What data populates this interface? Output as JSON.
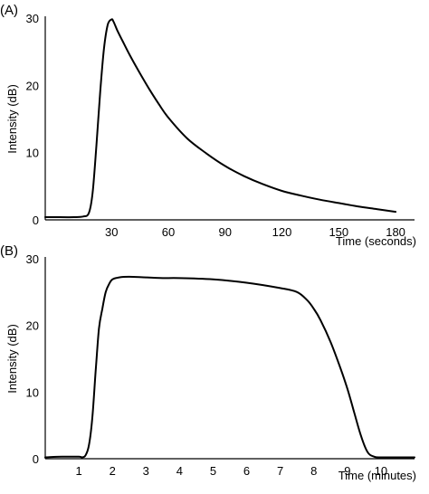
{
  "chart_data": [
    {
      "type": "line",
      "panel_label": "(A)",
      "xlabel": "Time (seconds)",
      "ylabel": "Intensity (dB)",
      "xlim": [
        -5,
        190
      ],
      "ylim": [
        0,
        30
      ],
      "xticks": [
        30,
        60,
        90,
        120,
        150,
        180
      ],
      "yticks": [
        0,
        10,
        20,
        30
      ],
      "grid": false,
      "series": [
        {
          "x": [
            -5,
            0,
            10,
            15,
            18,
            20,
            22,
            24,
            26,
            28,
            30,
            31,
            33,
            36,
            40,
            45,
            50,
            55,
            60,
            70,
            80,
            90,
            100,
            110,
            120,
            130,
            140,
            150,
            160,
            170,
            180
          ],
          "y": [
            0.4,
            0.4,
            0.4,
            0.5,
            1.0,
            4.0,
            11.0,
            19.0,
            25.5,
            29.0,
            29.8,
            29.5,
            28.2,
            26.5,
            24.3,
            21.8,
            19.4,
            17.2,
            15.2,
            12.1,
            9.9,
            8.0,
            6.5,
            5.3,
            4.3,
            3.6,
            3.0,
            2.5,
            2.0,
            1.6,
            1.2
          ]
        }
      ]
    },
    {
      "type": "line",
      "panel_label": "(B)",
      "xlabel": "Time (minutes)",
      "ylabel": "Intensity (dB)",
      "xlim": [
        0,
        11
      ],
      "ylim": [
        0,
        30
      ],
      "xticks": [
        1,
        2,
        3,
        4,
        5,
        6,
        7,
        8,
        9,
        10
      ],
      "yticks": [
        0,
        10,
        20,
        30
      ],
      "grid": false,
      "series": [
        {
          "x": [
            0,
            0.5,
            1.0,
            1.1,
            1.2,
            1.3,
            1.4,
            1.5,
            1.6,
            1.7,
            1.8,
            1.9,
            2.0,
            2.2,
            2.5,
            3.0,
            3.5,
            4.0,
            5.0,
            6.0,
            7.0,
            7.5,
            7.8,
            8.0,
            8.2,
            8.5,
            8.8,
            9.0,
            9.2,
            9.4,
            9.6,
            9.8,
            10.0,
            10.2,
            10.5,
            11.0
          ],
          "y": [
            0.2,
            0.3,
            0.3,
            0.2,
            0.5,
            2.0,
            6.0,
            13.0,
            19.5,
            22.5,
            25.0,
            26.2,
            26.9,
            27.2,
            27.3,
            27.2,
            27.1,
            27.1,
            26.9,
            26.4,
            25.6,
            25.0,
            23.8,
            22.5,
            20.8,
            17.5,
            13.5,
            10.5,
            7.0,
            3.5,
            1.0,
            0.3,
            0.2,
            0.2,
            0.2,
            0.2
          ]
        }
      ]
    }
  ]
}
